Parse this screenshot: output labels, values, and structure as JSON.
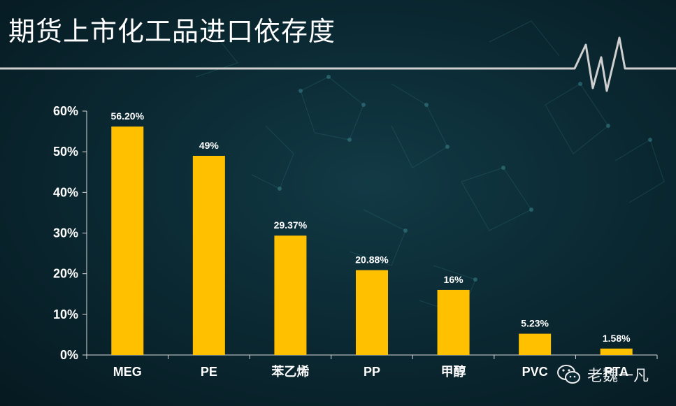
{
  "title": "期货上市化工品进口依存度",
  "watermark": {
    "text": "老魏一凡",
    "icon": "wechat-icon"
  },
  "colors": {
    "bar": "#FFC000",
    "axis": "#d9d9d9",
    "text": "#ffffff",
    "pulse": "#cfcfcf"
  },
  "chart_data": {
    "type": "bar",
    "title": "期货上市化工品进口依存度",
    "xlabel": "",
    "ylabel": "",
    "categories": [
      "MEG",
      "PE",
      "苯乙烯",
      "PP",
      "甲醇",
      "PVC",
      "PTA"
    ],
    "values": [
      56.2,
      49,
      29.37,
      20.88,
      16,
      5.23,
      1.58
    ],
    "data_labels": [
      "56.20%",
      "49%",
      "29.37%",
      "20.88%",
      "16%",
      "5.23%",
      "1.58%"
    ],
    "ylim": [
      0,
      60
    ],
    "yticks": [
      0,
      10,
      20,
      30,
      40,
      50,
      60
    ],
    "ytick_labels": [
      "0%",
      "10%",
      "20%",
      "30%",
      "40%",
      "50%",
      "60%"
    ],
    "grid": false,
    "legend": "none"
  }
}
